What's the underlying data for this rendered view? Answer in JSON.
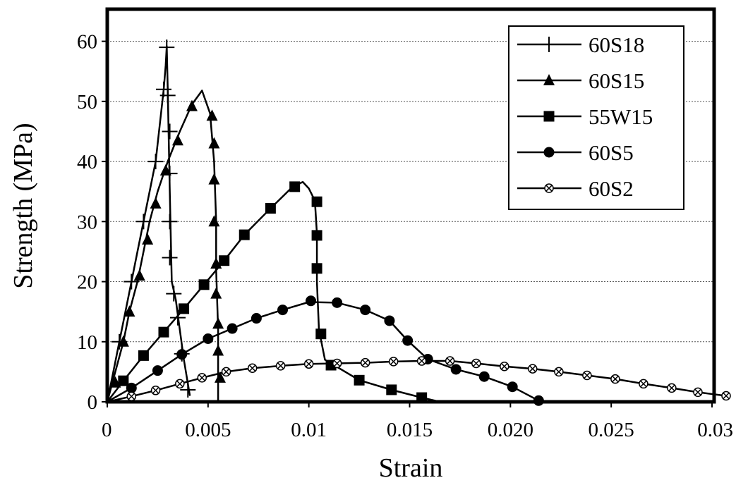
{
  "chart_data": {
    "type": "line",
    "xlabel": "Strain",
    "ylabel": "Strength (MPa)",
    "xlim": [
      0,
      0.03
    ],
    "ylim": [
      0,
      65
    ],
    "x_ticks": [
      0,
      0.005,
      0.01,
      0.015,
      0.02,
      0.025,
      0.03
    ],
    "x_tick_labels": [
      "0",
      "0.005",
      "0.01",
      "0.015",
      "0.020",
      "0.025",
      "0.03"
    ],
    "y_ticks": [
      0,
      10,
      20,
      30,
      40,
      50,
      60
    ],
    "y_tick_labels": [
      "0",
      "10",
      "20",
      "30",
      "40",
      "50",
      "60"
    ],
    "grid": "horizontal dashed",
    "legend_position": "top-right",
    "series": [
      {
        "name": "60S18",
        "marker": "plus",
        "points": [
          [
            0,
            0
          ],
          [
            0.0003,
            5
          ],
          [
            0.0006,
            10
          ],
          [
            0.0009,
            15
          ],
          [
            0.0012,
            20
          ],
          [
            0.0015,
            25
          ],
          [
            0.0018,
            30
          ],
          [
            0.0021,
            35
          ],
          [
            0.0024,
            40
          ],
          [
            0.0026,
            46
          ],
          [
            0.0028,
            52
          ],
          [
            0.0029,
            56
          ],
          [
            0.00295,
            59.2
          ],
          [
            0.003,
            52
          ],
          [
            0.0031,
            35
          ],
          [
            0.0032,
            20
          ],
          [
            0.0034,
            17
          ],
          [
            0.0036,
            12
          ],
          [
            0.0038,
            7
          ],
          [
            0.0041,
            1
          ]
        ],
        "marker_points": [
          [
            0.0006,
            10
          ],
          [
            0.0012,
            20
          ],
          [
            0.0018,
            30
          ],
          [
            0.0024,
            40
          ],
          [
            0.0028,
            52
          ],
          [
            0.00295,
            59
          ],
          [
            0.003,
            51
          ],
          [
            0.0031,
            45
          ],
          [
            0.0031,
            38
          ],
          [
            0.0031,
            30
          ],
          [
            0.0031,
            24
          ],
          [
            0.0033,
            18
          ],
          [
            0.0035,
            14
          ],
          [
            0.0037,
            8
          ],
          [
            0.004,
            2
          ]
        ]
      },
      {
        "name": "60S15",
        "marker": "triangle",
        "points": [
          [
            0,
            0
          ],
          [
            0.0004,
            5
          ],
          [
            0.0008,
            10
          ],
          [
            0.0011,
            15
          ],
          [
            0.0015,
            20
          ],
          [
            0.0018,
            25
          ],
          [
            0.0021,
            30
          ],
          [
            0.0025,
            35
          ],
          [
            0.003,
            40
          ],
          [
            0.0036,
            45
          ],
          [
            0.0042,
            49.5
          ],
          [
            0.0047,
            51.8
          ],
          [
            0.0051,
            48
          ],
          [
            0.0053,
            40
          ],
          [
            0.0054,
            30
          ],
          [
            0.0054,
            22
          ],
          [
            0.0055,
            12
          ],
          [
            0.0055,
            0
          ]
        ],
        "marker_points": [
          [
            0.0004,
            3.2
          ],
          [
            0.0008,
            10
          ],
          [
            0.0011,
            15
          ],
          [
            0.0016,
            21
          ],
          [
            0.002,
            27
          ],
          [
            0.0024,
            33
          ],
          [
            0.0029,
            38.5
          ],
          [
            0.0035,
            43.5
          ],
          [
            0.0042,
            49.2
          ],
          [
            0.0052,
            47.6
          ],
          [
            0.0053,
            43
          ],
          [
            0.0053,
            37
          ],
          [
            0.0053,
            30
          ],
          [
            0.0054,
            23
          ],
          [
            0.0054,
            18
          ],
          [
            0.0055,
            13
          ],
          [
            0.0055,
            8.5
          ],
          [
            0.0056,
            4
          ]
        ]
      },
      {
        "name": "55W15",
        "marker": "square",
        "points": [
          [
            0,
            0
          ],
          [
            0.0008,
            3.5
          ],
          [
            0.0018,
            7.7
          ],
          [
            0.0028,
            11.6
          ],
          [
            0.0038,
            15.5
          ],
          [
            0.0048,
            19.5
          ],
          [
            0.0058,
            23.5
          ],
          [
            0.0068,
            27.8
          ],
          [
            0.0081,
            32.2
          ],
          [
            0.0092,
            35.8
          ],
          [
            0.0097,
            36.6
          ],
          [
            0.01,
            35.5
          ],
          [
            0.0103,
            33.5
          ],
          [
            0.0104,
            28
          ],
          [
            0.0104,
            20
          ],
          [
            0.0105,
            12
          ],
          [
            0.0108,
            7
          ],
          [
            0.0125,
            3.6
          ],
          [
            0.0141,
            2
          ],
          [
            0.0156,
            0.7
          ],
          [
            0.0165,
            0
          ]
        ],
        "marker_points": [
          [
            0.0008,
            3.5
          ],
          [
            0.0018,
            7.7
          ],
          [
            0.0028,
            11.6
          ],
          [
            0.0038,
            15.5
          ],
          [
            0.0048,
            19.5
          ],
          [
            0.0058,
            23.5
          ],
          [
            0.0068,
            27.8
          ],
          [
            0.0081,
            32.2
          ],
          [
            0.0093,
            35.8
          ],
          [
            0.0104,
            33.3
          ],
          [
            0.0104,
            27.7
          ],
          [
            0.0104,
            22.2
          ],
          [
            0.0106,
            11.3
          ],
          [
            0.0111,
            6.1
          ],
          [
            0.0125,
            3.6
          ],
          [
            0.0141,
            2
          ],
          [
            0.0156,
            0.7
          ]
        ]
      },
      {
        "name": "60S5",
        "marker": "circle",
        "points": [
          [
            0,
            0
          ],
          [
            0.0012,
            2.3
          ],
          [
            0.0025,
            5.2
          ],
          [
            0.0037,
            7.9
          ],
          [
            0.005,
            10.5
          ],
          [
            0.0062,
            12.2
          ],
          [
            0.0074,
            13.9
          ],
          [
            0.0087,
            15.3
          ],
          [
            0.01,
            16.6
          ],
          [
            0.0114,
            16.5
          ],
          [
            0.0128,
            15.3
          ],
          [
            0.014,
            13.5
          ],
          [
            0.0149,
            10.2
          ],
          [
            0.0159,
            7.1
          ],
          [
            0.0173,
            5.4
          ],
          [
            0.0187,
            4.2
          ],
          [
            0.0201,
            2.5
          ],
          [
            0.0214,
            0.2
          ]
        ],
        "marker_points": [
          [
            0.0012,
            2.3
          ],
          [
            0.0025,
            5.2
          ],
          [
            0.0037,
            7.9
          ],
          [
            0.005,
            10.5
          ],
          [
            0.0062,
            12.2
          ],
          [
            0.0074,
            13.9
          ],
          [
            0.0087,
            15.3
          ],
          [
            0.0101,
            16.8
          ],
          [
            0.0114,
            16.5
          ],
          [
            0.0128,
            15.3
          ],
          [
            0.014,
            13.5
          ],
          [
            0.0149,
            10.2
          ],
          [
            0.0159,
            7.1
          ],
          [
            0.0173,
            5.4
          ],
          [
            0.0187,
            4.2
          ],
          [
            0.0201,
            2.5
          ],
          [
            0.0214,
            0.2
          ]
        ]
      },
      {
        "name": "60S2",
        "marker": "circle-x",
        "points": [
          [
            0,
            0
          ],
          [
            0.0012,
            0.9
          ],
          [
            0.0024,
            1.9
          ],
          [
            0.0036,
            3
          ],
          [
            0.0047,
            4
          ],
          [
            0.0059,
            5
          ],
          [
            0.0072,
            5.6
          ],
          [
            0.0086,
            6
          ],
          [
            0.01,
            6.3
          ],
          [
            0.0114,
            6.4
          ],
          [
            0.0128,
            6.5
          ],
          [
            0.0142,
            6.7
          ],
          [
            0.0156,
            6.8
          ],
          [
            0.017,
            6.8
          ],
          [
            0.0183,
            6.4
          ],
          [
            0.0197,
            5.9
          ],
          [
            0.0211,
            5.5
          ],
          [
            0.0224,
            5
          ],
          [
            0.0238,
            4.4
          ],
          [
            0.0252,
            3.8
          ],
          [
            0.0266,
            3
          ],
          [
            0.028,
            2.3
          ],
          [
            0.0293,
            1.6
          ],
          [
            0.0307,
            1
          ]
        ],
        "marker_points": [
          [
            0.0012,
            0.9
          ],
          [
            0.0024,
            1.9
          ],
          [
            0.0036,
            3
          ],
          [
            0.0047,
            4
          ],
          [
            0.0059,
            5
          ],
          [
            0.0072,
            5.6
          ],
          [
            0.0086,
            6
          ],
          [
            0.01,
            6.3
          ],
          [
            0.0114,
            6.4
          ],
          [
            0.0128,
            6.5
          ],
          [
            0.0142,
            6.7
          ],
          [
            0.0156,
            6.8
          ],
          [
            0.017,
            6.8
          ],
          [
            0.0183,
            6.4
          ],
          [
            0.0197,
            5.9
          ],
          [
            0.0211,
            5.5
          ],
          [
            0.0224,
            5
          ],
          [
            0.0238,
            4.4
          ],
          [
            0.0252,
            3.8
          ],
          [
            0.0266,
            3
          ],
          [
            0.028,
            2.3
          ],
          [
            0.0293,
            1.6
          ],
          [
            0.0307,
            1
          ]
        ]
      }
    ]
  }
}
